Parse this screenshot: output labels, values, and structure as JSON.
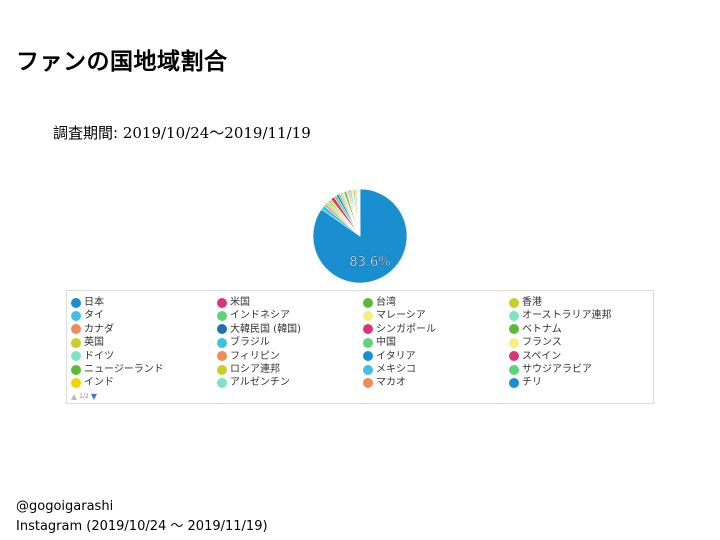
{
  "slide": {
    "title": "ファンの国地域割合",
    "period_label": "調査期間: ",
    "period_value": "2019/10/24～2019/11/19"
  },
  "footer": {
    "handle": "@gogoigarashi",
    "source": "Instagram (2019/10/24 ～ 2019/11/19)"
  },
  "legend": {
    "page": "1/2"
  },
  "chart_data": {
    "type": "pie",
    "title": "ファンの国地域割合",
    "data_label": "83.6%",
    "slices": [
      {
        "name": "日本",
        "value": 83.6,
        "color": "#1a8fd0"
      },
      {
        "name": "タイ",
        "value": 1.5,
        "color": "#3fc1e6"
      },
      {
        "name": "カナダ",
        "value": 0.8,
        "color": "#f08a57"
      },
      {
        "name": "英国",
        "value": 0.7,
        "color": "#c8cf2a"
      },
      {
        "name": "ドイツ",
        "value": 0.6,
        "color": "#7de3c7"
      },
      {
        "name": "ニュージーランド",
        "value": 0.5,
        "color": "#5dba38"
      },
      {
        "name": "インド",
        "value": 0.5,
        "color": "#f2d400"
      },
      {
        "name": "米国",
        "value": 1.3,
        "color": "#d9367a"
      },
      {
        "name": "インドネシア",
        "value": 0.9,
        "color": "#5dd37a"
      },
      {
        "name": "大韓民国 (韓国)",
        "value": 0.8,
        "color": "#1d72ad"
      },
      {
        "name": "ブラジル",
        "value": 0.6,
        "color": "#3fc1e6"
      },
      {
        "name": "フィリピン",
        "value": 0.5,
        "color": "#f08a57"
      },
      {
        "name": "ロシア連邦",
        "value": 0.5,
        "color": "#c8cf2a"
      },
      {
        "name": "アルゼンチン",
        "value": 0.4,
        "color": "#7de3c7"
      },
      {
        "name": "台湾",
        "value": 0.8,
        "color": "#5dba38"
      },
      {
        "name": "マレーシア",
        "value": 0.5,
        "color": "#f5ef80"
      },
      {
        "name": "シンガポール",
        "value": 0.4,
        "color": "#d9367a"
      },
      {
        "name": "中国",
        "value": 0.4,
        "color": "#5dd37a"
      },
      {
        "name": "イタリア",
        "value": 0.4,
        "color": "#1a8fd0"
      },
      {
        "name": "メキシコ",
        "value": 0.3,
        "color": "#3fc1e6"
      },
      {
        "name": "マカオ",
        "value": 0.3,
        "color": "#f08a57"
      },
      {
        "name": "香港",
        "value": 0.6,
        "color": "#c8cf2a"
      },
      {
        "name": "オーストラリア連邦",
        "value": 0.5,
        "color": "#7de3c7"
      },
      {
        "name": "ベトナム",
        "value": 0.3,
        "color": "#5dba38"
      },
      {
        "name": "フランス",
        "value": 0.3,
        "color": "#f5ef80"
      },
      {
        "name": "スペイン",
        "value": 0.3,
        "color": "#d9367a"
      },
      {
        "name": "サウジアラビア",
        "value": 0.2,
        "color": "#5dd37a"
      },
      {
        "name": "チリ",
        "value": 0.2,
        "color": "#1a8fd0"
      }
    ]
  }
}
